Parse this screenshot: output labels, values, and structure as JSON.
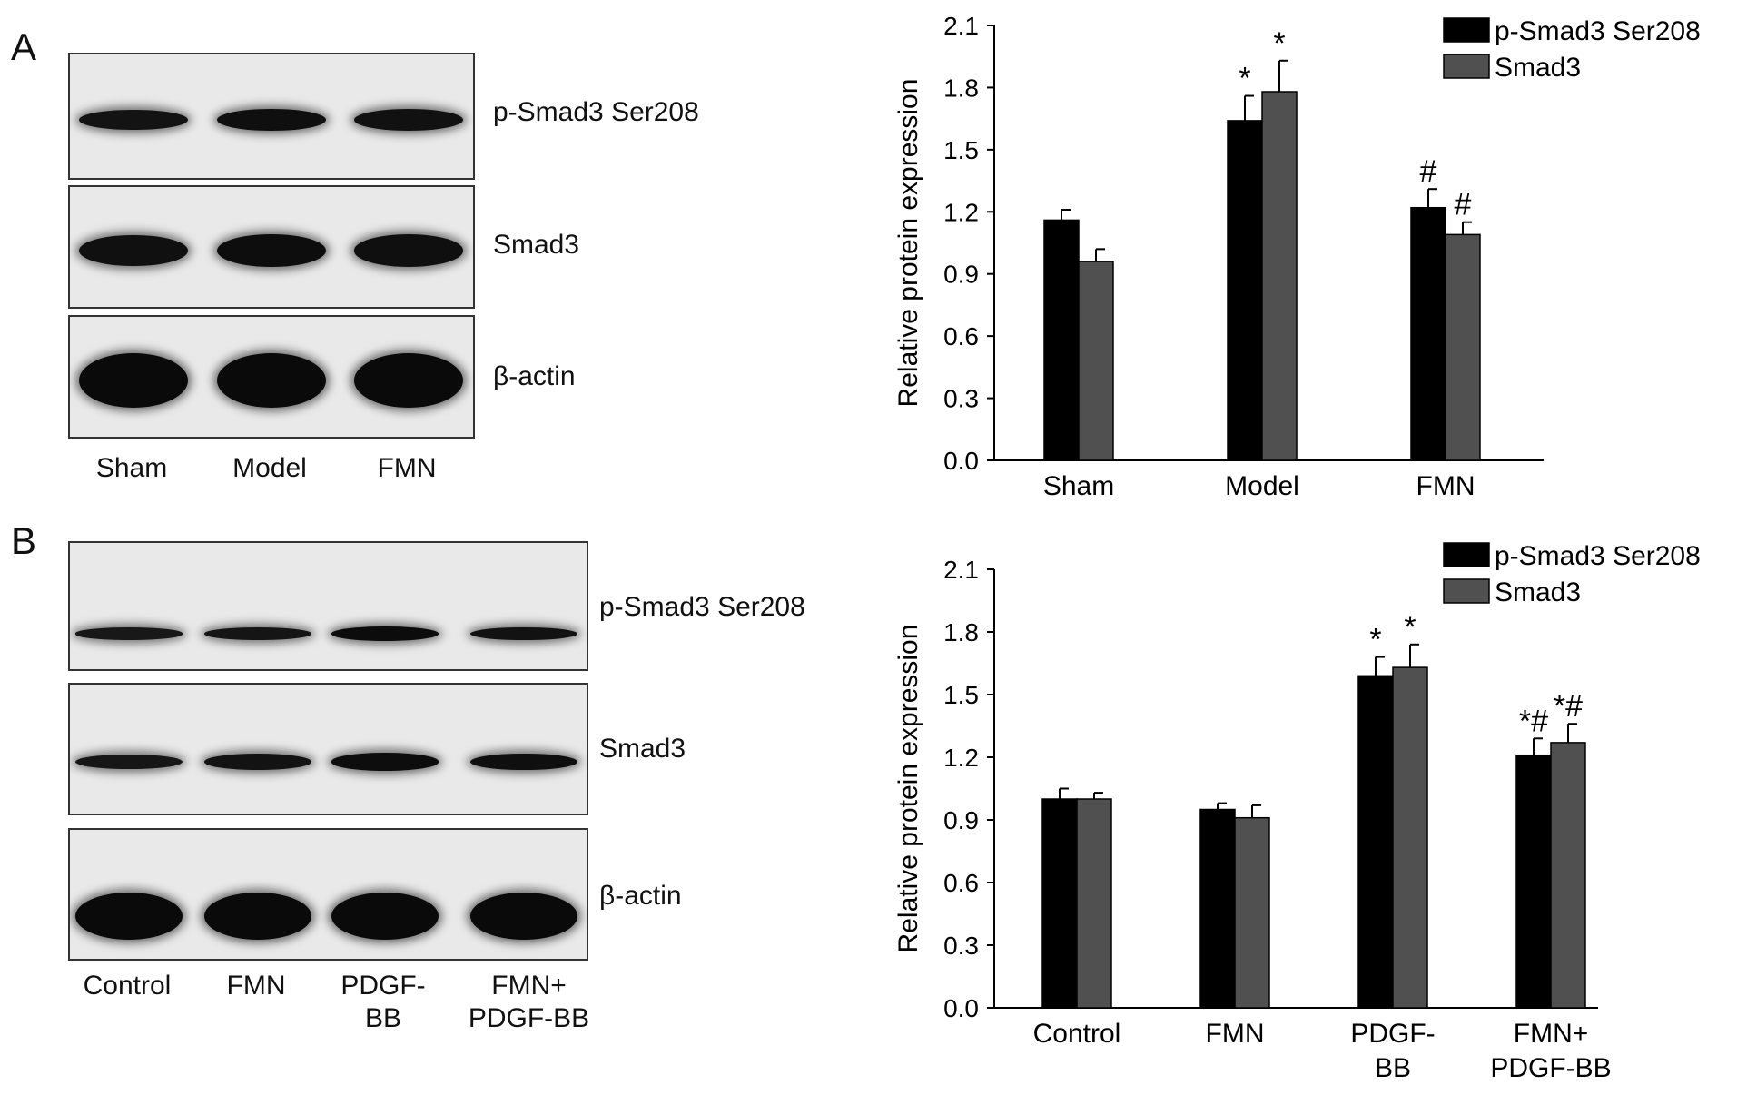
{
  "panels": [
    {
      "letter": "A",
      "blot": {
        "rows": [
          {
            "label": "p-Smad3 Ser208",
            "intensity": [
              0.7,
              0.85,
              0.78
            ]
          },
          {
            "label": "Smad3",
            "intensity": [
              0.8,
              0.9,
              0.82
            ]
          },
          {
            "label": "β-actin",
            "intensity": [
              1.0,
              1.0,
              1.0
            ]
          }
        ],
        "lanes": [
          "Sham",
          "Model",
          "FMN"
        ]
      }
    },
    {
      "letter": "B",
      "blot": {
        "rows": [
          {
            "label": "p-Smad3 Ser208",
            "intensity": [
              0.55,
              0.62,
              0.92,
              0.75
            ]
          },
          {
            "label": "Smad3",
            "intensity": [
              0.6,
              0.7,
              0.9,
              0.82
            ]
          },
          {
            "label": "β-actin",
            "intensity": [
              1.0,
              1.0,
              1.0,
              1.0
            ]
          }
        ],
        "lanes": [
          "Control",
          "FMN",
          "PDGF-\nBB",
          "FMN+\nPDGF-BB"
        ]
      }
    }
  ],
  "chart_data": [
    {
      "type": "bar",
      "categories": [
        "Sham",
        "Model",
        "FMN"
      ],
      "series": [
        {
          "name": "p-Smad3 Ser208",
          "values": [
            1.16,
            1.64,
            1.22
          ],
          "errors": [
            0.05,
            0.12,
            0.09
          ],
          "marks": [
            "",
            "*",
            "#"
          ],
          "color": "#000000"
        },
        {
          "name": "Smad3",
          "values": [
            0.96,
            1.78,
            1.09
          ],
          "errors": [
            0.06,
            0.15,
            0.06
          ],
          "marks": [
            "",
            "*",
            "#"
          ],
          "color": "#505050"
        }
      ],
      "ylabel": "Relative protein expression",
      "ylim": [
        0,
        2.1
      ],
      "yticks": [
        "0.0",
        "0.3",
        "0.6",
        "0.9",
        "1.2",
        "1.5",
        "1.8",
        "2.1"
      ],
      "grid": false,
      "legend": "top-right"
    },
    {
      "type": "bar",
      "categories": [
        "Control",
        "FMN",
        "PDGF-\nBB",
        "FMN+\nPDGF-BB"
      ],
      "series": [
        {
          "name": "p-Smad3 Ser208",
          "values": [
            1.0,
            0.95,
            1.59,
            1.21
          ],
          "errors": [
            0.05,
            0.03,
            0.09,
            0.08
          ],
          "marks": [
            "",
            "",
            "*",
            "*#"
          ],
          "color": "#000000"
        },
        {
          "name": "Smad3",
          "values": [
            1.0,
            0.91,
            1.63,
            1.27
          ],
          "errors": [
            0.03,
            0.06,
            0.11,
            0.09
          ],
          "marks": [
            "",
            "",
            "*",
            "*#"
          ],
          "color": "#505050"
        }
      ],
      "ylabel": "Relative protein expression",
      "ylim": [
        0,
        2.1
      ],
      "yticks": [
        "0.0",
        "0.3",
        "0.6",
        "0.9",
        "1.2",
        "1.5",
        "1.8",
        "2.1"
      ],
      "grid": false,
      "legend": "top-right"
    }
  ]
}
